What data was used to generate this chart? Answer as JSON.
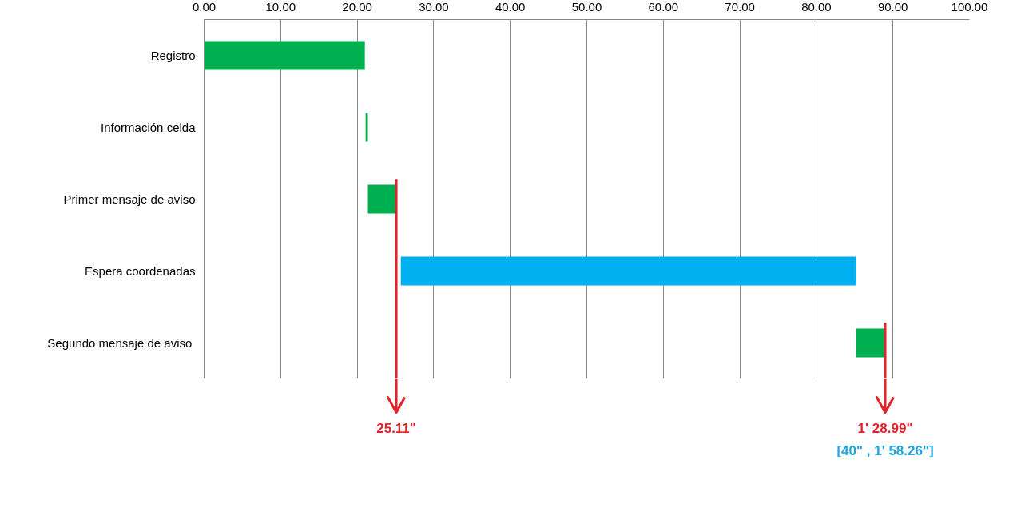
{
  "chart_data": {
    "type": "bar",
    "orientation": "horizontal",
    "categories": [
      "Registro",
      "Información celda",
      "Primer mensaje de aviso",
      "Espera coordenadas",
      "Segundo mensaje  de aviso"
    ],
    "base": [
      0,
      21.1,
      21.4,
      25.7,
      85.2
    ],
    "values": [
      21.0,
      0.3,
      3.7,
      59.5,
      3.8
    ],
    "colors": [
      "#00b050",
      "#00b050",
      "#00b050",
      "#00b0f0",
      "#00b050"
    ],
    "xlim": [
      0,
      100
    ],
    "xticks": [
      {
        "value": 0,
        "label": "0.00"
      },
      {
        "value": 10,
        "label": "10.00"
      },
      {
        "value": 20,
        "label": "20.00"
      },
      {
        "value": 30,
        "label": "30.00"
      },
      {
        "value": 40,
        "label": "40.00"
      },
      {
        "value": 50,
        "label": "50.00"
      },
      {
        "value": 60,
        "label": "60.00"
      },
      {
        "value": 70,
        "label": "70.00"
      },
      {
        "value": 80,
        "label": "80.00"
      },
      {
        "value": 90,
        "label": "90.00"
      },
      {
        "value": 100,
        "label": "100.00"
      }
    ],
    "grid": "x",
    "ref_lines": [
      {
        "axis": "x",
        "value": 25.11,
        "label": "25.11\"",
        "color": "#e0242a"
      },
      {
        "axis": "x",
        "value": 88.99,
        "color": "#e0242a"
      }
    ],
    "annotations": [
      "1' 28.99\"",
      "[40\" , 1' 58.26\"]"
    ]
  }
}
